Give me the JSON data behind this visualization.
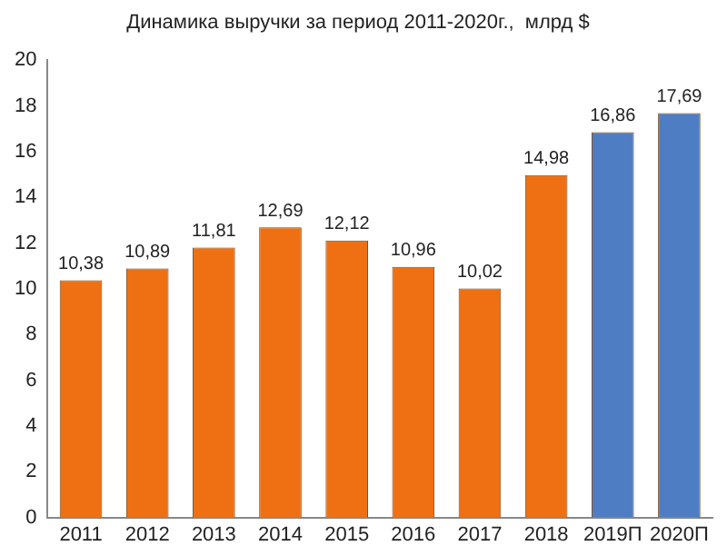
{
  "chart_data": {
    "type": "bar",
    "title": "Динамика выручки за период 2011-2020г.,  млрд $",
    "categories": [
      "2011",
      "2012",
      "2013",
      "2014",
      "2015",
      "2016",
      "2017",
      "2018",
      "2019П",
      "2020П"
    ],
    "values": [
      10.38,
      10.89,
      11.81,
      12.69,
      12.12,
      10.96,
      10.02,
      14.98,
      16.86,
      17.69
    ],
    "value_labels": [
      "10,38",
      "10,89",
      "11,81",
      "12,69",
      "12,12",
      "10,96",
      "10,02",
      "14,98",
      "16,86",
      "17,69"
    ],
    "colors": [
      "#ee7013",
      "#ee7013",
      "#ee7013",
      "#ee7013",
      "#ee7013",
      "#ee7013",
      "#ee7013",
      "#ee7013",
      "#4f7dc3",
      "#4f7dc3"
    ],
    "ylim": [
      0,
      20
    ],
    "yticks": [
      0,
      2,
      4,
      6,
      8,
      10,
      12,
      14,
      16,
      18,
      20
    ],
    "grid": false,
    "legend": false
  }
}
